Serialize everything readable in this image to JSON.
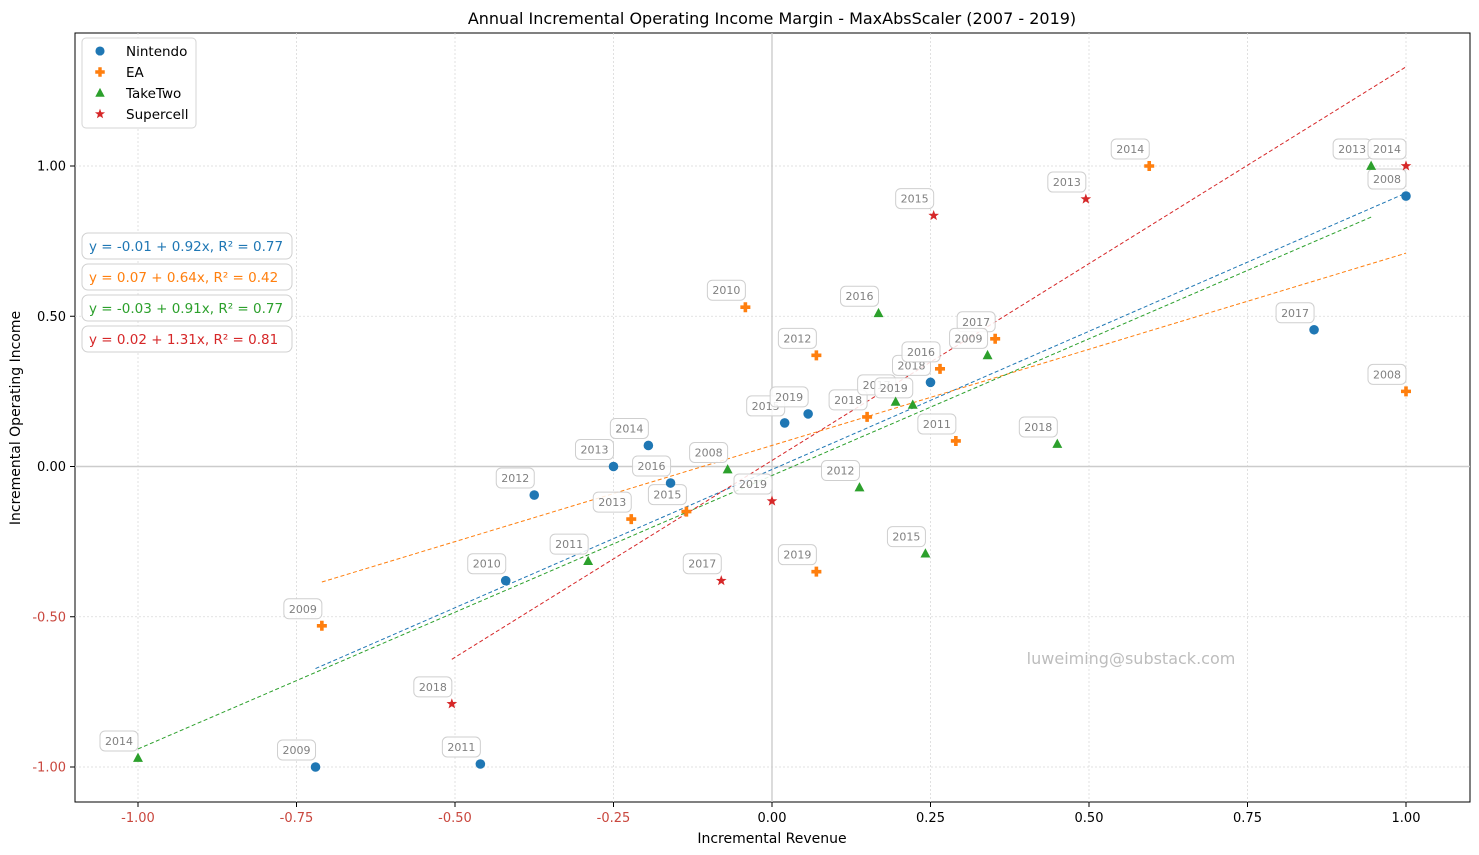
{
  "chart_data": {
    "type": "scatter",
    "title": "Annual Incremental Operating Income Margin - MaxAbsScaler (2007 - 2019)",
    "xlabel": "Incremental Revenue",
    "ylabel": "Incremental Operating Income",
    "xlim": [
      -1.1,
      1.1
    ],
    "ylim": [
      -1.12,
      1.45
    ],
    "xticks": [
      -1.0,
      -0.75,
      -0.5,
      -0.25,
      0.0,
      0.25,
      0.5,
      0.75,
      1.0
    ],
    "xtick_labels": [
      "-1.00",
      "-0.75",
      "-0.50",
      "-0.25",
      "0.00",
      "0.25",
      "0.50",
      "0.75",
      "1.00"
    ],
    "yticks": [
      -1.0,
      -0.5,
      0.0,
      0.5,
      1.0
    ],
    "ytick_labels": [
      "-1.00",
      "-0.50",
      "0.00",
      "0.50",
      "1.00"
    ],
    "grid": true,
    "legend_position": "upper-left",
    "watermark": "luweiming@substack.com",
    "series": [
      {
        "name": "Nintendo",
        "color": "#1f77b4",
        "marker": "circle",
        "equation": "y = -0.01 + 0.92x, R² = 0.77",
        "fit": {
          "intercept": -0.01,
          "slope": 0.92,
          "x_range": [
            -0.72,
            1.0
          ]
        },
        "points": [
          {
            "year": "2008",
            "x": 1.0,
            "y": 0.9
          },
          {
            "year": "2009",
            "x": -0.72,
            "y": -1.0
          },
          {
            "year": "2010",
            "x": -0.42,
            "y": -0.38
          },
          {
            "year": "2011",
            "x": -0.46,
            "y": -0.99
          },
          {
            "year": "2012",
            "x": -0.375,
            "y": -0.095
          },
          {
            "year": "2013",
            "x": -0.25,
            "y": 0.0
          },
          {
            "year": "2014",
            "x": -0.195,
            "y": 0.07
          },
          {
            "year": "2015",
            "x": 0.02,
            "y": 0.145
          },
          {
            "year": "2016",
            "x": -0.16,
            "y": -0.055
          },
          {
            "year": "2017",
            "x": 0.855,
            "y": 0.455
          },
          {
            "year": "2018",
            "x": 0.25,
            "y": 0.28
          },
          {
            "year": "2019",
            "x": 0.057,
            "y": 0.175
          }
        ]
      },
      {
        "name": "EA",
        "color": "#ff7f0e",
        "marker": "plus",
        "equation": "y = 0.07 + 0.64x, R² = 0.42",
        "fit": {
          "intercept": 0.07,
          "slope": 0.64,
          "x_range": [
            -0.71,
            1.0
          ]
        },
        "points": [
          {
            "year": "2008",
            "x": 1.0,
            "y": 0.25
          },
          {
            "year": "2009",
            "x": -0.71,
            "y": -0.53
          },
          {
            "year": "2010",
            "x": -0.042,
            "y": 0.53
          },
          {
            "year": "2011",
            "x": 0.29,
            "y": 0.085
          },
          {
            "year": "2012",
            "x": 0.07,
            "y": 0.37
          },
          {
            "year": "2013",
            "x": -0.222,
            "y": -0.175
          },
          {
            "year": "2014",
            "x": 0.595,
            "y": 1.0
          },
          {
            "year": "2015",
            "x": -0.135,
            "y": -0.15
          },
          {
            "year": "2016",
            "x": 0.265,
            "y": 0.325
          },
          {
            "year": "2017",
            "x": 0.352,
            "y": 0.425
          },
          {
            "year": "2018",
            "x": 0.15,
            "y": 0.165
          },
          {
            "year": "2019",
            "x": 0.07,
            "y": -0.35
          }
        ]
      },
      {
        "name": "TakeTwo",
        "color": "#2ca02c",
        "marker": "triangle",
        "equation": "y = -0.03 + 0.91x, R² = 0.77",
        "fit": {
          "intercept": -0.03,
          "slope": 0.91,
          "x_range": [
            -1.0,
            0.945
          ]
        },
        "points": [
          {
            "year": "2008",
            "x": -0.07,
            "y": -0.01
          },
          {
            "year": "2009",
            "x": 0.34,
            "y": 0.37
          },
          {
            "year": "2011",
            "x": -0.29,
            "y": -0.315
          },
          {
            "year": "2012",
            "x": 0.138,
            "y": -0.07
          },
          {
            "year": "2013",
            "x": 0.945,
            "y": 1.0
          },
          {
            "year": "2014",
            "x": -1.0,
            "y": -0.97
          },
          {
            "year": "2015",
            "x": 0.242,
            "y": -0.29
          },
          {
            "year": "2016",
            "x": 0.168,
            "y": 0.51
          },
          {
            "year": "2017",
            "x": 0.195,
            "y": 0.215
          },
          {
            "year": "2018",
            "x": 0.45,
            "y": 0.075
          },
          {
            "year": "2019",
            "x": 0.222,
            "y": 0.205
          }
        ]
      },
      {
        "name": "Supercell",
        "color": "#d62728",
        "marker": "star",
        "equation": "y = 0.02 + 1.31x, R² = 0.81",
        "fit": {
          "intercept": 0.02,
          "slope": 1.31,
          "x_range": [
            -0.505,
            1.0
          ]
        },
        "points": [
          {
            "year": "2013",
            "x": 0.495,
            "y": 0.89
          },
          {
            "year": "2014",
            "x": 1.0,
            "y": 1.0
          },
          {
            "year": "2015",
            "x": 0.255,
            "y": 0.835
          },
          {
            "year": "2017",
            "x": -0.08,
            "y": -0.38
          },
          {
            "year": "2018",
            "x": -0.505,
            "y": -0.79
          },
          {
            "year": "2019",
            "x": 0.0,
            "y": -0.115
          }
        ]
      }
    ]
  }
}
